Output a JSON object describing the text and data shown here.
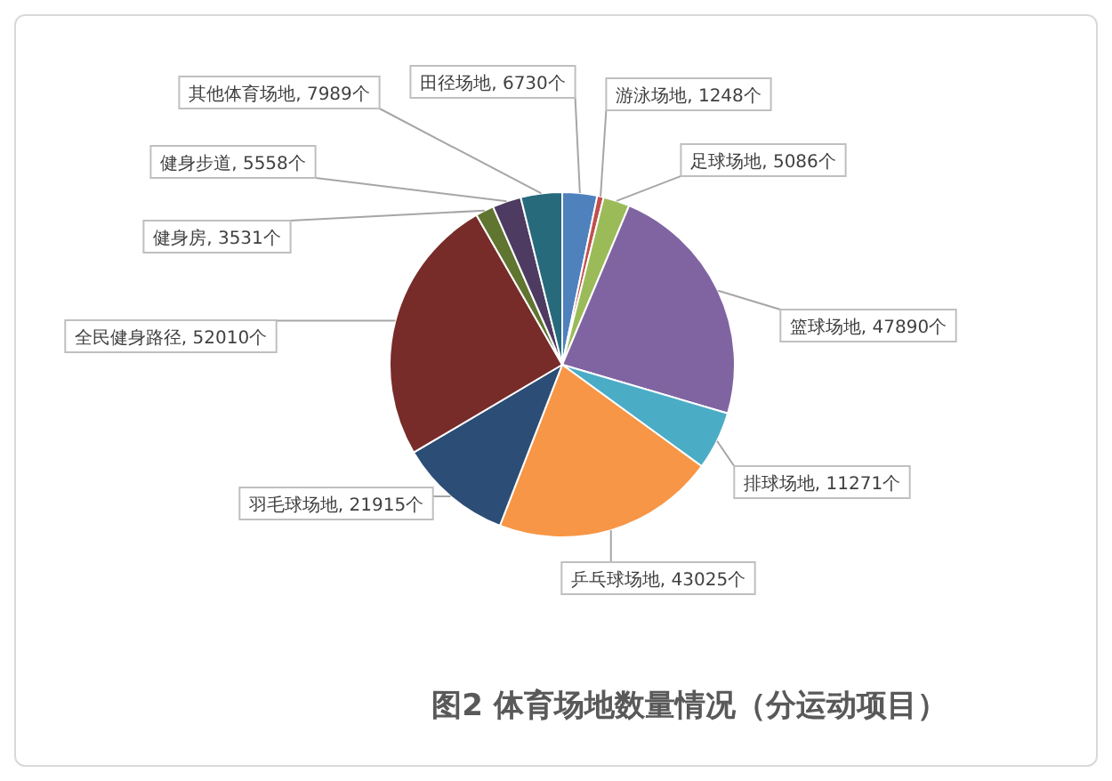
{
  "chart_data": {
    "type": "pie",
    "title": "图2  体育场地数量情况（分运动项目）",
    "categories": [
      "田径场地",
      "游泳场地",
      "足球场地",
      "篮球场地",
      "排球场地",
      "乒乓球场地",
      "羽毛球场地",
      "全民健身路径",
      "健身房",
      "健身步道",
      "其他体育场地"
    ],
    "values": [
      6730,
      1248,
      5086,
      47890,
      11271,
      43025,
      21915,
      52010,
      3531,
      5558,
      7989
    ],
    "colors": [
      "#4f81bd",
      "#c0504d",
      "#9bbb59",
      "#8064a2",
      "#4bacc6",
      "#f79646",
      "#2c4d75",
      "#772c2a",
      "#5f7530",
      "#4d3b62",
      "#276a7c"
    ],
    "value_labels": [
      ", 6730个",
      ", 1248个",
      ", 5086个",
      ", 47890个",
      ", 11271个",
      ", 43025个",
      ", 21915个",
      ", 52010个",
      ", 3531个",
      ", 5558个",
      ", 7989个"
    ],
    "legend": false
  }
}
